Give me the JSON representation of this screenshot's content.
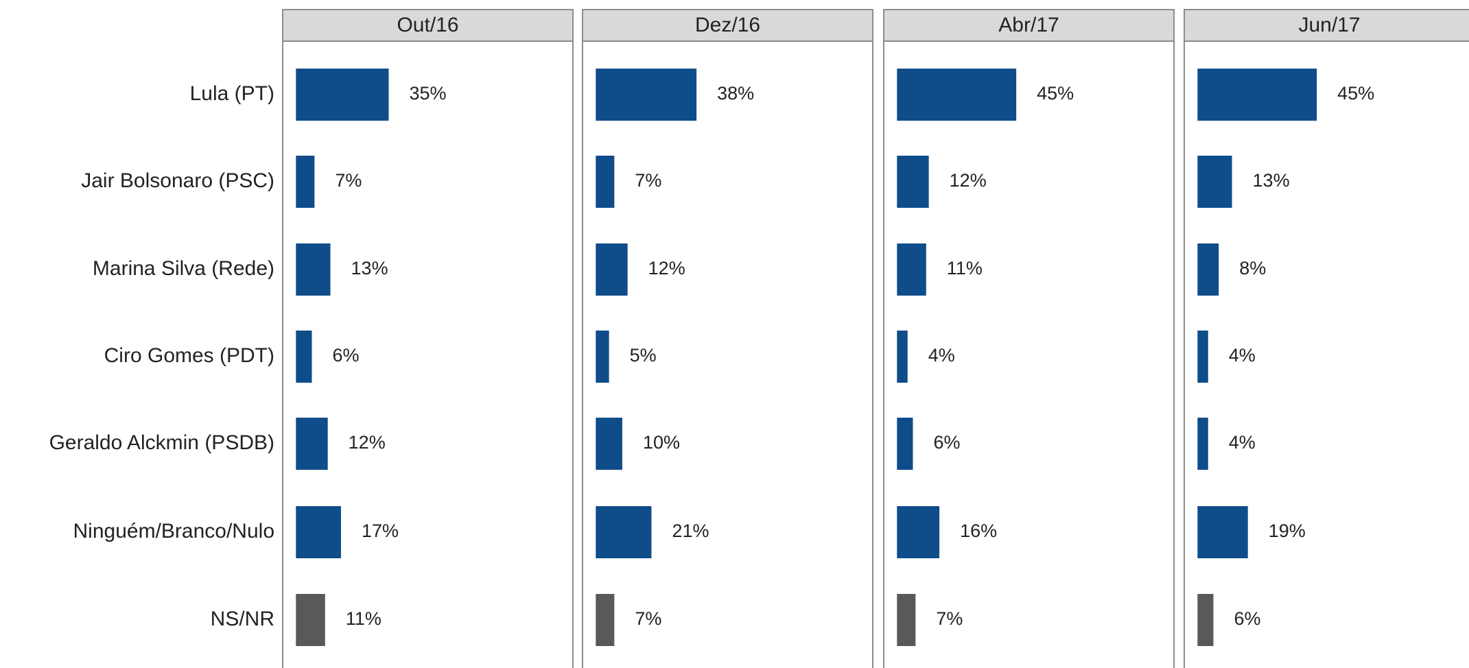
{
  "chart_data": {
    "type": "bar",
    "orientation": "horizontal",
    "facet": true,
    "categories": [
      "Lula (PT)",
      "Jair Bolsonaro (PSC)",
      "Marina Silva (Rede)",
      "Ciro Gomes (PDT)",
      "Geraldo Alckmin (PSDB)",
      "Ninguém/Branco/Nulo",
      "NS/NR"
    ],
    "colors": [
      "#0f4c8a",
      "#0f4c8a",
      "#0f4c8a",
      "#0f4c8a",
      "#0f4c8a",
      "#0f4c8a",
      "#595959"
    ],
    "xlim": [
      -5,
      104.5
    ],
    "series": [
      {
        "name": "Out/16",
        "values": [
          35,
          7,
          13,
          6,
          12,
          17,
          11
        ],
        "value_labels": [
          "35%",
          "7%",
          "13%",
          "6%",
          "12%",
          "17%",
          "11%"
        ]
      },
      {
        "name": "Dez/16",
        "values": [
          38,
          7,
          12,
          5,
          10,
          21,
          7
        ],
        "value_labels": [
          "38%",
          "7%",
          "12%",
          "5%",
          "10%",
          "21%",
          "7%"
        ]
      },
      {
        "name": "Abr/17",
        "values": [
          45,
          12,
          11,
          4,
          6,
          16,
          7
        ],
        "value_labels": [
          "45%",
          "12%",
          "11%",
          "4%",
          "6%",
          "16%",
          "7%"
        ]
      },
      {
        "name": "Jun/17",
        "values": [
          45,
          13,
          8,
          4,
          4,
          19,
          6
        ],
        "value_labels": [
          "45%",
          "13%",
          "8%",
          "4%",
          "4%",
          "19%",
          "6%"
        ]
      }
    ]
  }
}
